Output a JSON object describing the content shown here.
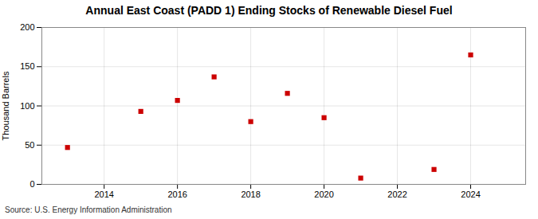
{
  "chart_data": {
    "type": "scatter",
    "title": "Annual East Coast (PADD 1) Ending Stocks of Renewable Diesel Fuel",
    "ylabel": "Thousand Barrels",
    "source": "Source: U.S. Energy Information Administration",
    "x": [
      2013,
      2015,
      2016,
      2017,
      2018,
      2019,
      2020,
      2021,
      2023,
      2024
    ],
    "values": [
      47,
      93,
      107,
      137,
      80,
      116,
      85,
      8,
      19,
      165
    ],
    "color": "#cc0000",
    "marker": "square",
    "xlim": [
      2012.3,
      2025.5
    ],
    "ylim": [
      0,
      200
    ],
    "xticks": [
      2014,
      2016,
      2018,
      2020,
      2022,
      2024
    ],
    "yticks": [
      0,
      50,
      100,
      150,
      200
    ],
    "grid": true
  }
}
